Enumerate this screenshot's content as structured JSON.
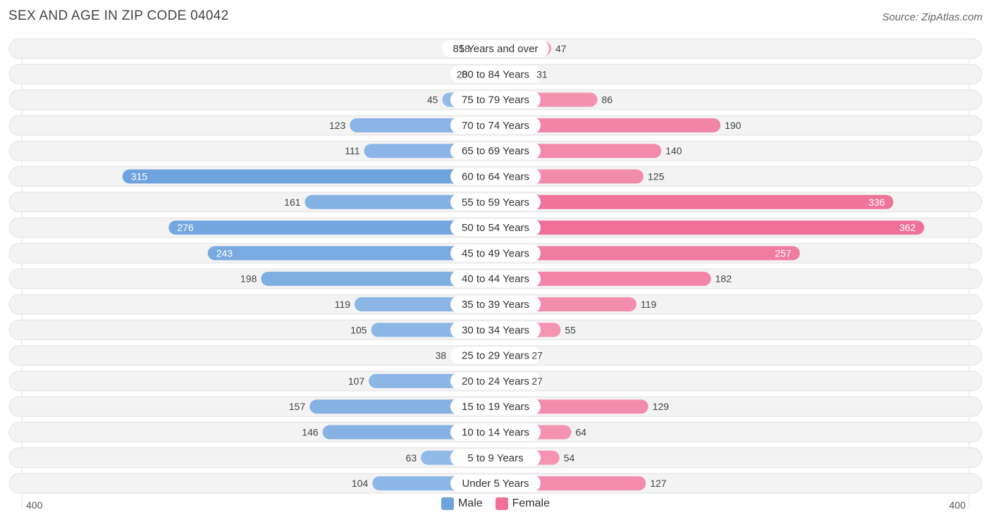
{
  "title": "SEX AND AGE IN ZIP CODE 04042",
  "source": "Source: ZipAtlas.com",
  "colors": {
    "male": "#6fa3de",
    "male_light": "#a9c9ee",
    "female": "#f07098",
    "female_light": "#f6a9c1"
  },
  "chart_data": {
    "type": "bar",
    "orientation": "horizontal-diverging",
    "title": "SEX AND AGE IN ZIP CODE 04042",
    "xlim": [
      -400,
      400
    ],
    "axis_labels": {
      "left": "400",
      "right": "400"
    },
    "legend": [
      {
        "name": "Male",
        "color": "#6fa3de"
      },
      {
        "name": "Female",
        "color": "#f07098"
      }
    ],
    "legend_position": "bottom-center",
    "categories": [
      "85 Years and over",
      "80 to 84 Years",
      "75 to 79 Years",
      "70 to 74 Years",
      "65 to 69 Years",
      "60 to 64 Years",
      "55 to 59 Years",
      "50 to 54 Years",
      "45 to 49 Years",
      "40 to 44 Years",
      "35 to 39 Years",
      "30 to 34 Years",
      "25 to 29 Years",
      "20 to 24 Years",
      "15 to 19 Years",
      "10 to 14 Years",
      "5 to 9 Years",
      "Under 5 Years"
    ],
    "series": [
      {
        "name": "Male",
        "values": [
          18,
          20,
          45,
          123,
          111,
          315,
          161,
          276,
          243,
          198,
          119,
          105,
          38,
          107,
          157,
          146,
          63,
          104
        ]
      },
      {
        "name": "Female",
        "values": [
          47,
          31,
          86,
          190,
          140,
          125,
          336,
          362,
          257,
          182,
          119,
          55,
          27,
          27,
          129,
          64,
          54,
          127
        ]
      }
    ]
  }
}
